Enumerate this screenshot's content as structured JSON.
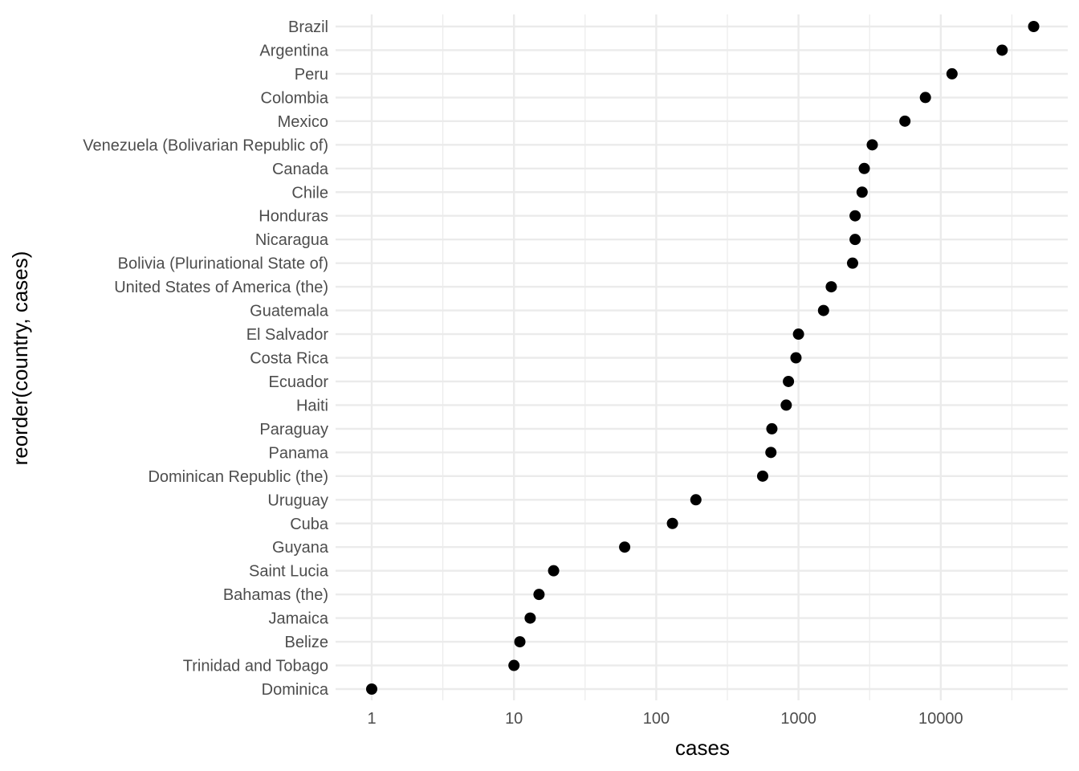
{
  "chart_data": {
    "type": "scatter",
    "title": "",
    "xlabel": "cases",
    "ylabel": "reorder(country, cases)",
    "x_scale": "log10",
    "xlim": [
      0.8,
      60000
    ],
    "x_ticks": [
      1,
      10,
      100,
      1000,
      10000
    ],
    "x_tick_labels": [
      "1",
      "10",
      "100",
      "1000",
      "10000"
    ],
    "grid": true,
    "legend": "none",
    "colors": {
      "point": "#000000",
      "grid": "#ebebeb",
      "background": "#ffffff"
    },
    "categories": [
      "Brazil",
      "Argentina",
      "Peru",
      "Colombia",
      "Mexico",
      "Venezuela (Bolivarian Republic of)",
      "Canada",
      "Chile",
      "Honduras",
      "Nicaragua",
      "Bolivia (Plurinational State of)",
      "United States of America (the)",
      "Guatemala",
      "El Salvador",
      "Costa Rica",
      "Ecuador",
      "Haiti",
      "Paraguay",
      "Panama",
      "Dominican Republic (the)",
      "Uruguay",
      "Cuba",
      "Guyana",
      "Saint Lucia",
      "Bahamas (the)",
      "Jamaica",
      "Belize",
      "Trinidad and Tobago",
      "Dominica"
    ],
    "values": [
      45000,
      27000,
      12000,
      7800,
      5600,
      3300,
      2900,
      2800,
      2500,
      2500,
      2400,
      1700,
      1500,
      1000,
      960,
      850,
      820,
      650,
      640,
      560,
      190,
      130,
      60,
      19,
      15,
      13,
      11,
      10,
      1
    ]
  }
}
